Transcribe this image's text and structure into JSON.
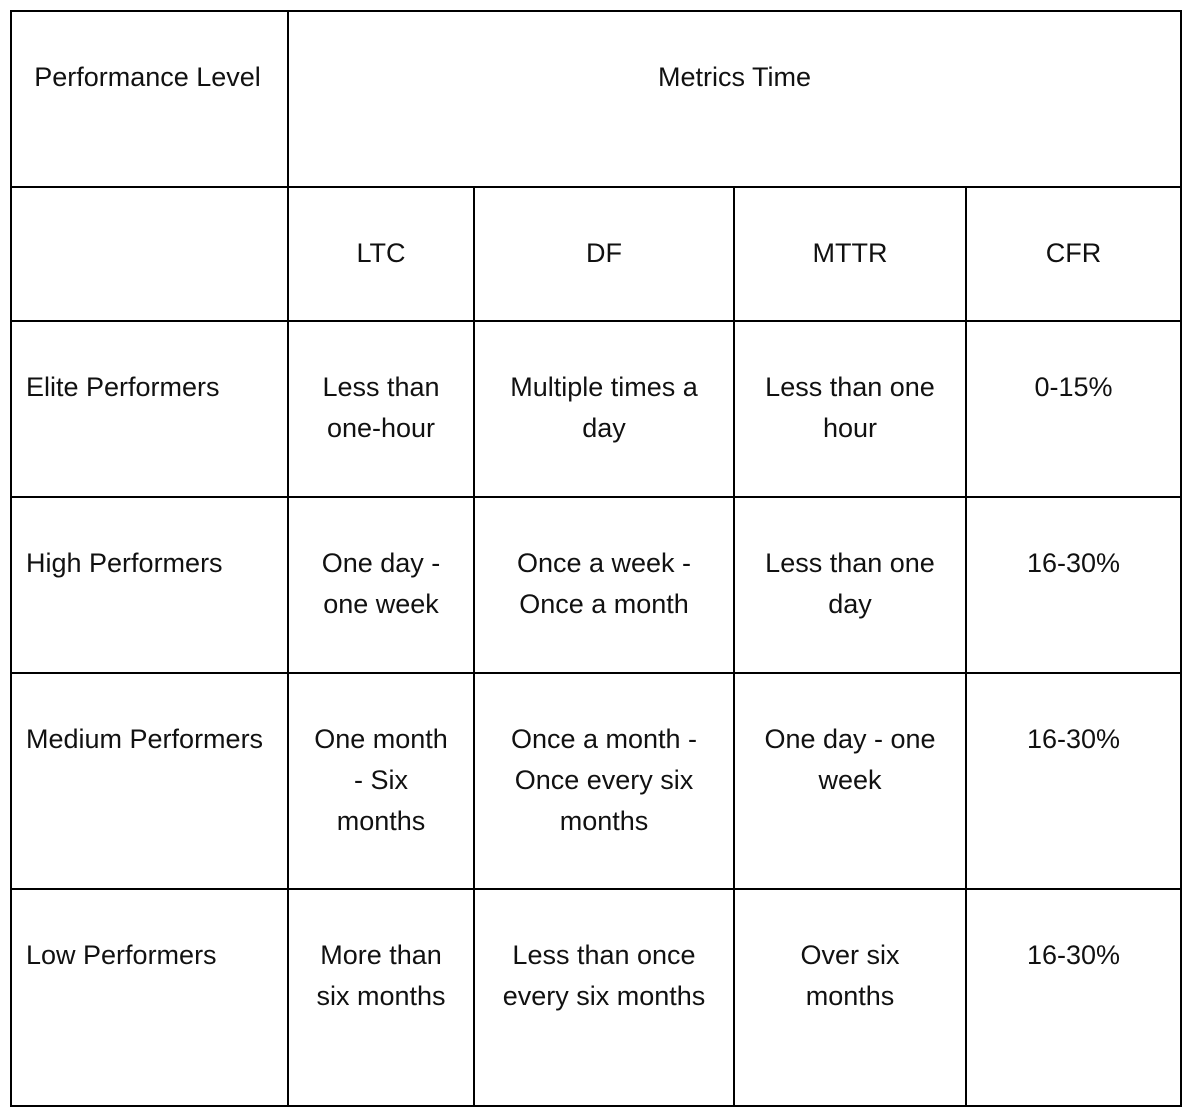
{
  "table": {
    "header": {
      "performance_level": "Performance Level",
      "metrics_time": "Metrics Time"
    },
    "columns": [
      "LTC",
      "DF",
      "MTTR",
      "CFR"
    ],
    "rows": [
      [
        "Elite Performers",
        "Less than one-hour",
        "Multiple times a day",
        "Less than one hour",
        "0-15%"
      ],
      [
        "High Performers",
        "One day - one week",
        "Once a week - Once a month",
        "Less than one day",
        "16-30%"
      ],
      [
        "Medium Performers",
        "One month - Six months",
        "Once a month - Once every six months",
        "One day - one week",
        "16-30%"
      ],
      [
        "Low Performers",
        "More than six months",
        "Less than once every six months",
        "Over six months",
        "16-30%"
      ]
    ]
  }
}
